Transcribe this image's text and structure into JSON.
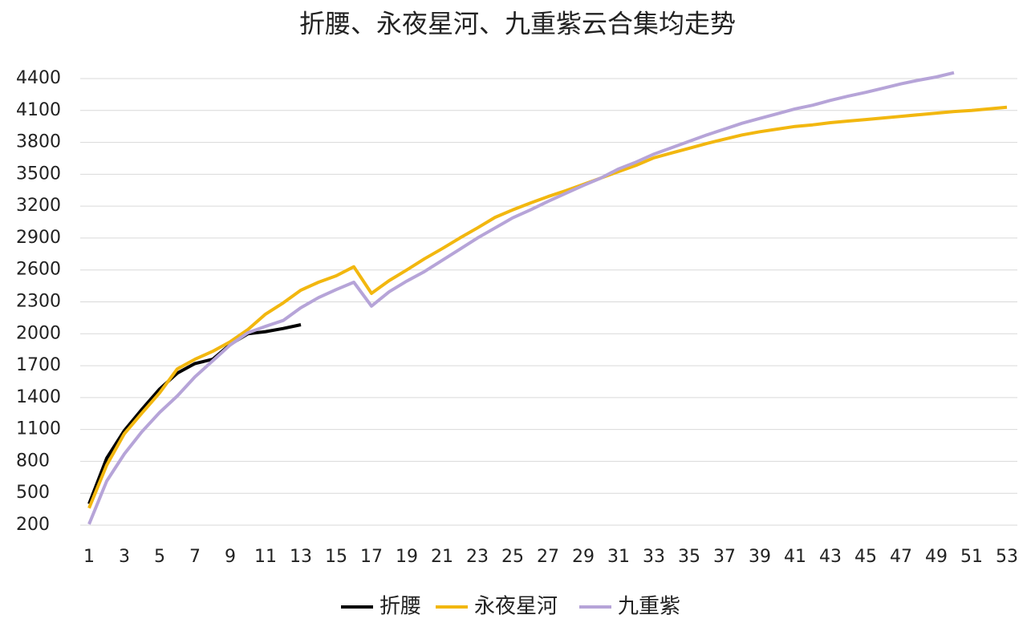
{
  "chart_data": {
    "type": "line",
    "title": "折腰、永夜星河、九重紫云合集均走势",
    "categories": [
      "1",
      null,
      "3",
      null,
      "5",
      null,
      "7",
      null,
      "9",
      null,
      "11",
      null,
      "13",
      null,
      "15",
      null,
      "17",
      null,
      "19",
      null,
      "21",
      null,
      "23",
      null,
      "25",
      null,
      "27",
      null,
      "29",
      null,
      "31",
      null,
      "33",
      null,
      "35",
      null,
      "37",
      null,
      "39",
      null,
      "41",
      null,
      "43",
      null,
      "45",
      null,
      "47",
      null,
      "49",
      null,
      "51",
      null,
      "53"
    ],
    "series": [
      {
        "name": "折腰",
        "color": "#000000",
        "values": [
          400,
          830,
          1090,
          1290,
          1480,
          1630,
          1720,
          1760,
          1900,
          2000,
          2020,
          2050,
          2085,
          null,
          null,
          null,
          null,
          null,
          null,
          null,
          null,
          null,
          null,
          null,
          null,
          null,
          null,
          null,
          null,
          null,
          null,
          null,
          null,
          null,
          null,
          null,
          null,
          null,
          null,
          null,
          null,
          null,
          null,
          null,
          null,
          null,
          null,
          null,
          null,
          null,
          null,
          null,
          null
        ]
      },
      {
        "name": "永夜星河",
        "color": "#f2b70f",
        "values": [
          360,
          765,
          1060,
          1255,
          1445,
          1670,
          1760,
          1835,
          1925,
          2040,
          2185,
          2290,
          2410,
          2485,
          2545,
          2630,
          2380,
          2500,
          2600,
          2705,
          2800,
          2900,
          2995,
          3095,
          3165,
          3230,
          3290,
          3345,
          3405,
          3465,
          3525,
          3585,
          3655,
          3700,
          3745,
          3790,
          3830,
          3870,
          3900,
          3925,
          3950,
          3965,
          3985,
          4000,
          4015,
          4030,
          4045,
          4060,
          4075,
          4090,
          4100,
          4115,
          4130
        ]
      },
      {
        "name": "九重紫",
        "color": "#b6a4d8",
        "values": [
          210,
          615,
          870,
          1080,
          1260,
          1415,
          1595,
          1745,
          1895,
          2010,
          2070,
          2125,
          2245,
          2340,
          2415,
          2485,
          2260,
          2395,
          2495,
          2585,
          2690,
          2795,
          2900,
          2995,
          3090,
          3165,
          3245,
          3320,
          3395,
          3465,
          3550,
          3615,
          3690,
          3750,
          3810,
          3870,
          3925,
          3980,
          4025,
          4070,
          4115,
          4150,
          4195,
          4235,
          4270,
          4310,
          4350,
          4385,
          4415,
          4455,
          null,
          null,
          null
        ]
      }
    ],
    "ylim": [
      200,
      4400
    ],
    "yticks": [
      200,
      500,
      800,
      1100,
      1400,
      1700,
      2000,
      2300,
      2600,
      2900,
      3200,
      3500,
      3800,
      4100,
      4400
    ],
    "grid": true,
    "legend": "bottom"
  }
}
